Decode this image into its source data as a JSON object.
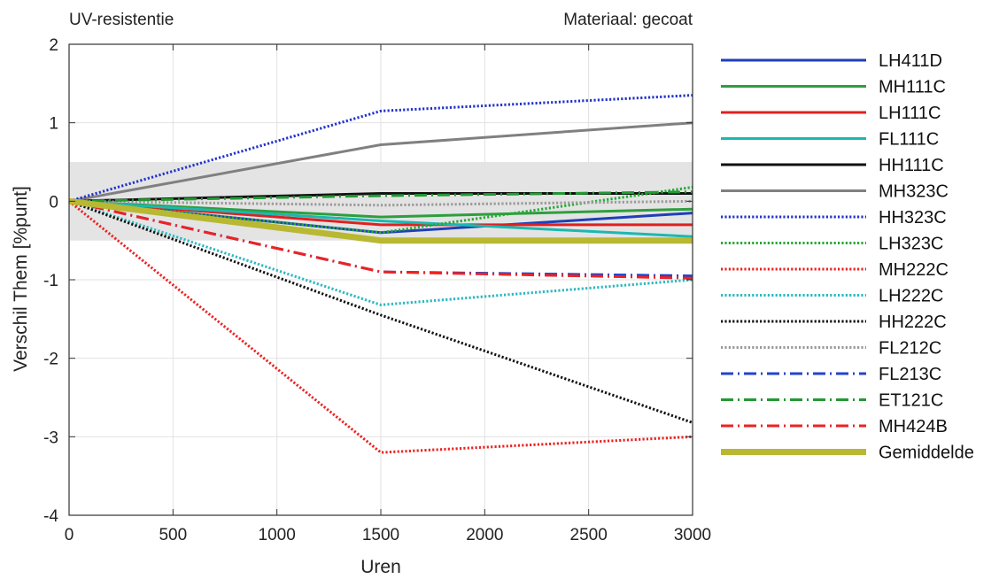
{
  "chart_data": {
    "type": "line",
    "title_left": "UV-resistentie",
    "title_right": "Materiaal: gecoat",
    "xlabel": "Uren",
    "ylabel": "Verschil Them [%punt]",
    "xlim": [
      0,
      3000
    ],
    "ylim": [
      -4,
      2
    ],
    "xticks": [
      "0",
      "500",
      "1000",
      "1500",
      "2000",
      "2500",
      "3000"
    ],
    "yticks": [
      "2",
      "1",
      "0",
      "-1",
      "-2",
      "-3",
      "-4"
    ],
    "grid": true,
    "legend_position": "right",
    "tolerance_band": [
      -0.5,
      0.5
    ],
    "x": [
      0,
      1500,
      3000
    ],
    "series": [
      {
        "name": "LH411D",
        "values": [
          0,
          -0.4,
          -0.15
        ],
        "color": "#1f3fb8",
        "style": "solid"
      },
      {
        "name": "MH111C",
        "values": [
          0,
          -0.2,
          -0.1
        ],
        "color": "#2e9e3e",
        "style": "solid"
      },
      {
        "name": "LH111C",
        "values": [
          0,
          -0.3,
          -0.3
        ],
        "color": "#e02020",
        "style": "solid"
      },
      {
        "name": "FL111C",
        "values": [
          0,
          -0.25,
          -0.45
        ],
        "color": "#1cb8b0",
        "style": "solid"
      },
      {
        "name": "HH111C",
        "values": [
          0,
          0.1,
          0.1
        ],
        "color": "#111111",
        "style": "solid"
      },
      {
        "name": "MH323C",
        "values": [
          0,
          0.72,
          1.0
        ],
        "color": "#808080",
        "style": "solid"
      },
      {
        "name": "HH323C",
        "values": [
          0,
          1.15,
          1.35
        ],
        "color": "#2233cc",
        "style": "dotted"
      },
      {
        "name": "LH323C",
        "values": [
          0,
          -0.4,
          0.18
        ],
        "color": "#22aa33",
        "style": "dotted"
      },
      {
        "name": "MH222C",
        "values": [
          0,
          -3.2,
          -3.0
        ],
        "color": "#ee2222",
        "style": "dotted"
      },
      {
        "name": "LH222C",
        "values": [
          0,
          -1.32,
          -1.0
        ],
        "color": "#2ab8c0",
        "style": "dotted"
      },
      {
        "name": "HH222C",
        "values": [
          0,
          -1.45,
          -2.82
        ],
        "color": "#111111",
        "style": "dotted"
      },
      {
        "name": "FL212C",
        "values": [
          0,
          -0.05,
          0.0
        ],
        "color": "#999999",
        "style": "dotted"
      },
      {
        "name": "FL213C",
        "values": [
          0,
          -0.9,
          -0.95
        ],
        "color": "#2244cc",
        "style": "dashdot"
      },
      {
        "name": "ET121C",
        "values": [
          0,
          0.07,
          0.12
        ],
        "color": "#229933",
        "style": "dashdot"
      },
      {
        "name": "MH424B",
        "values": [
          0,
          -0.9,
          -0.98
        ],
        "color": "#ee2222",
        "style": "dashdot"
      },
      {
        "name": "Gemiddelde",
        "values": [
          0,
          -0.5,
          -0.5
        ],
        "color": "#b8b832",
        "style": "thick"
      }
    ]
  }
}
